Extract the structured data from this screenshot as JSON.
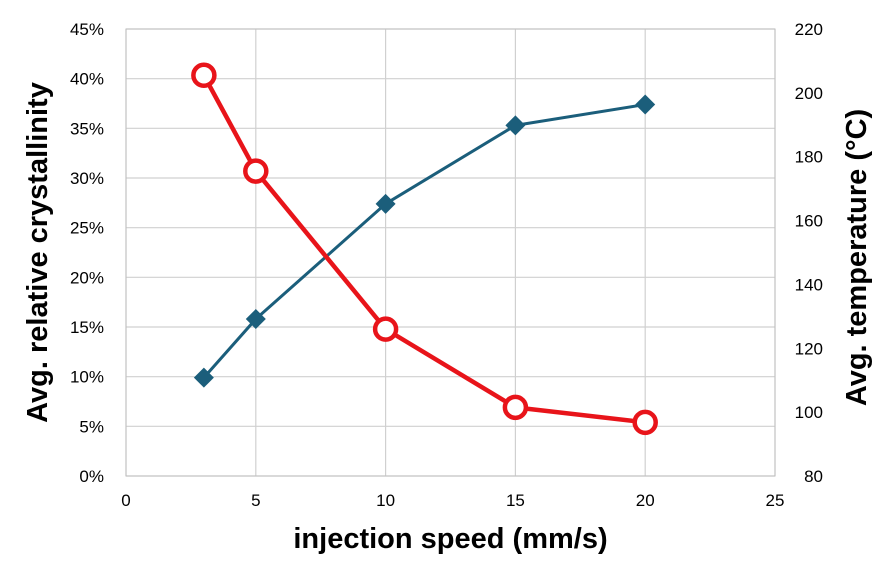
{
  "chart_data": {
    "type": "line",
    "title": "",
    "xlabel": "injection speed (mm/s)",
    "ylabel": "Avg. relative crystallinity",
    "y2label": "Avg. temperature (°C)",
    "xlim": [
      0,
      25
    ],
    "ylim": [
      0,
      45
    ],
    "y2lim": [
      80,
      220
    ],
    "x_ticks": [
      "0",
      "5",
      "10",
      "15",
      "20",
      "25"
    ],
    "y_ticks": [
      "0%",
      "5%",
      "10%",
      "15%",
      "20%",
      "25%",
      "30%",
      "35%",
      "40%",
      "45%"
    ],
    "y2_ticks": [
      "80",
      "100",
      "120",
      "140",
      "160",
      "180",
      "200",
      "220"
    ],
    "grid": true,
    "legend": "none",
    "series": [
      {
        "axis": "left",
        "marker": "diamond",
        "color": "#1b5e7b",
        "x": [
          3,
          5,
          10,
          15,
          20
        ],
        "y": [
          9.9,
          15.8,
          27.4,
          35.3,
          37.4
        ]
      },
      {
        "axis": "right",
        "marker": "circle",
        "color": "#e8141a",
        "x": [
          3,
          5,
          10,
          15,
          20
        ],
        "y": [
          205.5,
          175.5,
          126,
          101.5,
          96.8
        ]
      }
    ]
  }
}
